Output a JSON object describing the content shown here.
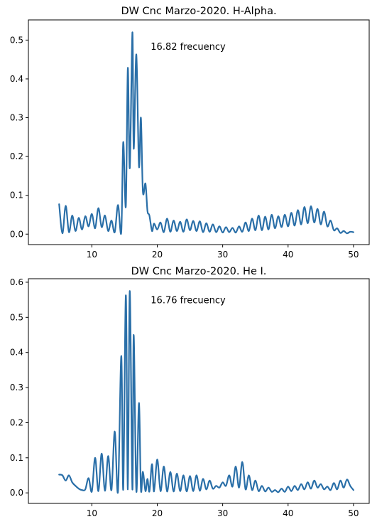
{
  "chart_data": [
    {
      "type": "line",
      "title": "DW Cnc Marzo-2020. H-Alpha.",
      "xlabel": "",
      "ylabel": "",
      "xlim": [
        0.3,
        52.4
      ],
      "ylim": [
        -0.027,
        0.552
      ],
      "xticks": [
        10,
        20,
        30,
        40,
        50
      ],
      "yticks": [
        0.0,
        0.1,
        0.2,
        0.3,
        0.4,
        0.5
      ],
      "xtick_labels": [
        "10",
        "20",
        "30",
        "40",
        "50"
      ],
      "ytick_labels": [
        "0.0",
        "0.1",
        "0.2",
        "0.3",
        "0.4",
        "0.5"
      ],
      "annotation": {
        "text": "16.82 frecuency",
        "x": 19.0,
        "y": 0.475
      },
      "grid": false,
      "color": "#2a6fa8",
      "series": [
        {
          "x": [
            5.0,
            5.5,
            6.0,
            6.5,
            7.0,
            7.5,
            8.0,
            8.5,
            9.0,
            9.5,
            10.0,
            10.5,
            11.0,
            11.5,
            12.0,
            12.5,
            13.0,
            13.5,
            14.0,
            14.5,
            14.8,
            15.2,
            15.5,
            15.8,
            16.2,
            16.4,
            16.8,
            17.2,
            17.5,
            17.8,
            18.2,
            18.5,
            18.8,
            19.2,
            19.5,
            20.0,
            20.5,
            21.0,
            21.5,
            22.0,
            22.5,
            23.0,
            23.5,
            24.0,
            24.5,
            25.0,
            25.5,
            26.0,
            26.5,
            27.0,
            27.5,
            28.0,
            28.5,
            29.0,
            29.5,
            30.0,
            30.5,
            31.0,
            31.5,
            32.0,
            32.5,
            33.0,
            33.5,
            34.0,
            34.5,
            35.0,
            35.5,
            36.0,
            36.5,
            37.0,
            37.5,
            38.0,
            38.5,
            39.0,
            39.5,
            40.0,
            40.5,
            41.0,
            41.5,
            42.0,
            42.5,
            43.0,
            43.5,
            44.0,
            44.5,
            45.0,
            45.5,
            46.0,
            46.5,
            47.0,
            47.5,
            48.0,
            48.5,
            49.0,
            49.5,
            50.0
          ],
          "y": [
            0.077,
            0.002,
            0.073,
            0.005,
            0.048,
            0.008,
            0.042,
            0.012,
            0.046,
            0.02,
            0.052,
            0.015,
            0.067,
            0.018,
            0.048,
            0.008,
            0.035,
            0.005,
            0.075,
            0.005,
            0.237,
            0.072,
            0.428,
            0.17,
            0.52,
            0.22,
            0.463,
            0.175,
            0.3,
            0.11,
            0.13,
            0.06,
            0.048,
            0.008,
            0.027,
            0.012,
            0.03,
            0.005,
            0.04,
            0.006,
            0.035,
            0.008,
            0.032,
            0.006,
            0.038,
            0.01,
            0.034,
            0.008,
            0.033,
            0.005,
            0.028,
            0.006,
            0.025,
            0.005,
            0.02,
            0.004,
            0.018,
            0.005,
            0.016,
            0.004,
            0.02,
            0.006,
            0.03,
            0.008,
            0.04,
            0.01,
            0.048,
            0.01,
            0.045,
            0.012,
            0.05,
            0.015,
            0.046,
            0.018,
            0.05,
            0.02,
            0.055,
            0.022,
            0.062,
            0.025,
            0.07,
            0.028,
            0.072,
            0.03,
            0.065,
            0.025,
            0.058,
            0.02,
            0.035,
            0.01,
            0.015,
            0.003,
            0.008,
            0.002,
            0.006,
            0.005
          ]
        }
      ]
    },
    {
      "type": "line",
      "title": "DW Cnc Marzo-2020. He I.",
      "xlabel": "",
      "ylabel": "",
      "xlim": [
        0.3,
        52.4
      ],
      "ylim": [
        -0.03,
        0.61
      ],
      "xticks": [
        10,
        20,
        30,
        40,
        50
      ],
      "yticks": [
        0.0,
        0.1,
        0.2,
        0.3,
        0.4,
        0.5,
        0.6
      ],
      "xtick_labels": [
        "10",
        "20",
        "30",
        "40",
        "50"
      ],
      "ytick_labels": [
        "0.0",
        "0.1",
        "0.2",
        "0.3",
        "0.4",
        "0.5",
        "0.6"
      ],
      "annotation": {
        "text": "16.76 frecuency",
        "x": 19.0,
        "y": 0.54
      },
      "grid": false,
      "color": "#2a6fa8",
      "series": [
        {
          "x": [
            5.0,
            5.5,
            6.0,
            6.5,
            7.0,
            7.5,
            8.0,
            8.5,
            9.0,
            9.5,
            10.0,
            10.5,
            11.0,
            11.5,
            12.0,
            12.5,
            13.0,
            13.5,
            14.0,
            14.5,
            14.8,
            15.2,
            15.5,
            15.8,
            16.2,
            16.4,
            16.8,
            17.2,
            17.5,
            17.8,
            18.2,
            18.5,
            18.8,
            19.2,
            19.5,
            20.0,
            20.5,
            21.0,
            21.5,
            22.0,
            22.5,
            23.0,
            23.5,
            24.0,
            24.5,
            25.0,
            25.5,
            26.0,
            26.5,
            27.0,
            27.5,
            28.0,
            28.5,
            29.0,
            29.5,
            30.0,
            30.5,
            31.0,
            31.5,
            32.0,
            32.5,
            33.0,
            33.5,
            34.0,
            34.5,
            35.0,
            35.5,
            36.0,
            36.5,
            37.0,
            37.5,
            38.0,
            38.5,
            39.0,
            39.5,
            40.0,
            40.5,
            41.0,
            41.5,
            42.0,
            42.5,
            43.0,
            43.5,
            44.0,
            44.5,
            45.0,
            45.5,
            46.0,
            46.5,
            47.0,
            47.5,
            48.0,
            48.5,
            49.0,
            49.5,
            50.0
          ],
          "y": [
            0.052,
            0.05,
            0.035,
            0.05,
            0.03,
            0.02,
            0.012,
            0.008,
            0.01,
            0.042,
            0.004,
            0.1,
            0.005,
            0.112,
            0.006,
            0.105,
            0.008,
            0.175,
            0.004,
            0.39,
            0.01,
            0.563,
            0.01,
            0.575,
            0.01,
            0.45,
            0.005,
            0.256,
            0.01,
            0.06,
            0.005,
            0.04,
            0.004,
            0.082,
            0.004,
            0.095,
            0.005,
            0.075,
            0.004,
            0.06,
            0.004,
            0.055,
            0.005,
            0.05,
            0.004,
            0.048,
            0.005,
            0.05,
            0.006,
            0.04,
            0.01,
            0.035,
            0.012,
            0.02,
            0.015,
            0.03,
            0.02,
            0.05,
            0.018,
            0.075,
            0.015,
            0.088,
            0.01,
            0.05,
            0.008,
            0.035,
            0.005,
            0.02,
            0.004,
            0.015,
            0.003,
            0.008,
            0.002,
            0.012,
            0.003,
            0.018,
            0.005,
            0.02,
            0.008,
            0.025,
            0.01,
            0.03,
            0.012,
            0.035,
            0.015,
            0.025,
            0.01,
            0.018,
            0.008,
            0.028,
            0.01,
            0.035,
            0.015,
            0.038,
            0.02,
            0.008
          ]
        }
      ]
    }
  ]
}
